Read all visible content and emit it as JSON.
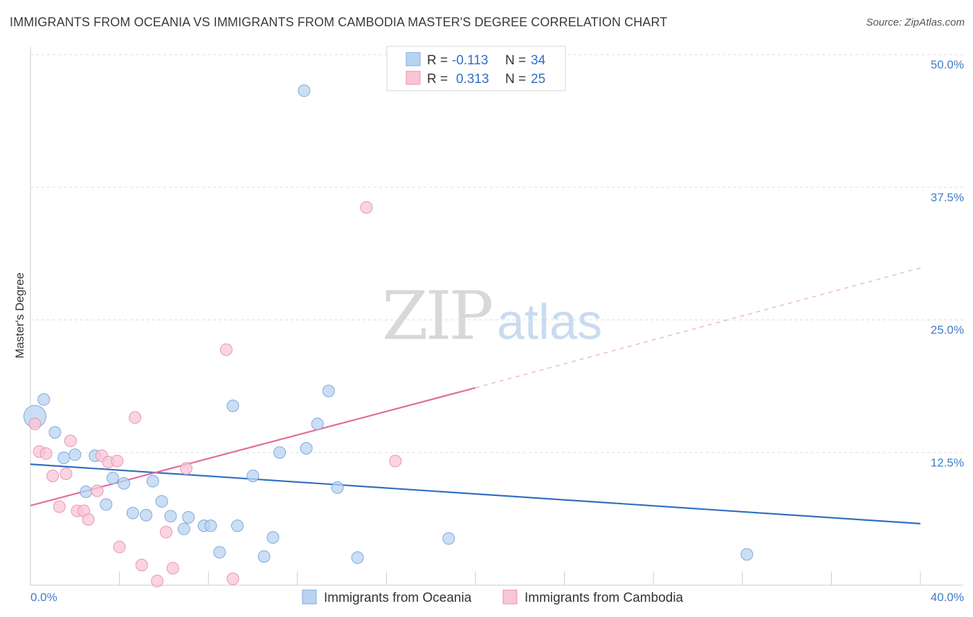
{
  "title": "IMMIGRANTS FROM OCEANIA VS IMMIGRANTS FROM CAMBODIA MASTER'S DEGREE CORRELATION CHART",
  "source": "Source: ZipAtlas.com",
  "watermark": {
    "zip": "ZIP",
    "atlas": "atlas"
  },
  "colors": {
    "oceania_fill": "#b8d3f2",
    "oceania_stroke": "#7fa9dc",
    "oceania_line": "#2f6fc4",
    "cambodia_fill": "#f8c6d6",
    "cambodia_stroke": "#ea93b0",
    "cambodia_line": "#e06e96",
    "grid": "#dddddd",
    "axis": "#cccccc"
  },
  "legend": {
    "r_label": "R =",
    "n_label": "N =",
    "oceania": {
      "r": "-0.113",
      "n": "34"
    },
    "cambodia": {
      "r": "0.313",
      "n": "25"
    }
  },
  "chart_data": {
    "type": "scatter",
    "title": "IMMIGRANTS FROM OCEANIA VS IMMIGRANTS FROM CAMBODIA MASTER'S DEGREE CORRELATION CHART",
    "xlabel": "",
    "ylabel": "Master's Degree",
    "xlim": [
      0,
      40
    ],
    "ylim": [
      0,
      50
    ],
    "x_tick_labels": [
      "0.0%",
      "40.0%"
    ],
    "y_ticks": [
      12.5,
      25.0,
      37.5,
      50.0
    ],
    "y_tick_labels": [
      "12.5%",
      "25.0%",
      "37.5%",
      "50.0%"
    ],
    "series": [
      {
        "name": "Immigrants from Oceania",
        "points": [
          {
            "x": 0.2,
            "y": 15.9,
            "big": true
          },
          {
            "x": 0.6,
            "y": 17.5
          },
          {
            "x": 1.1,
            "y": 14.4
          },
          {
            "x": 1.5,
            "y": 12.0
          },
          {
            "x": 2.0,
            "y": 12.3
          },
          {
            "x": 2.5,
            "y": 8.8
          },
          {
            "x": 2.9,
            "y": 12.2
          },
          {
            "x": 3.4,
            "y": 7.6
          },
          {
            "x": 3.7,
            "y": 10.1
          },
          {
            "x": 4.2,
            "y": 9.6
          },
          {
            "x": 4.6,
            "y": 6.8
          },
          {
            "x": 5.2,
            "y": 6.6
          },
          {
            "x": 5.5,
            "y": 9.8
          },
          {
            "x": 5.9,
            "y": 7.9
          },
          {
            "x": 6.3,
            "y": 6.5
          },
          {
            "x": 6.9,
            "y": 5.3
          },
          {
            "x": 7.1,
            "y": 6.4
          },
          {
            "x": 7.8,
            "y": 5.6
          },
          {
            "x": 8.1,
            "y": 5.6
          },
          {
            "x": 8.5,
            "y": 3.1
          },
          {
            "x": 9.1,
            "y": 16.9
          },
          {
            "x": 9.3,
            "y": 5.6
          },
          {
            "x": 10.0,
            "y": 10.3
          },
          {
            "x": 10.5,
            "y": 2.7
          },
          {
            "x": 10.9,
            "y": 4.5
          },
          {
            "x": 11.2,
            "y": 12.5
          },
          {
            "x": 12.3,
            "y": 46.6
          },
          {
            "x": 12.4,
            "y": 12.9
          },
          {
            "x": 12.9,
            "y": 15.2
          },
          {
            "x": 13.4,
            "y": 18.3
          },
          {
            "x": 13.8,
            "y": 9.2
          },
          {
            "x": 14.7,
            "y": 2.6
          },
          {
            "x": 18.8,
            "y": 4.4
          },
          {
            "x": 32.2,
            "y": 2.9
          }
        ]
      },
      {
        "name": "Immigrants from Cambodia",
        "points": [
          {
            "x": 0.2,
            "y": 15.2
          },
          {
            "x": 0.4,
            "y": 12.6
          },
          {
            "x": 0.7,
            "y": 12.4
          },
          {
            "x": 1.0,
            "y": 10.3
          },
          {
            "x": 1.3,
            "y": 7.4
          },
          {
            "x": 1.6,
            "y": 10.5
          },
          {
            "x": 1.8,
            "y": 13.6
          },
          {
            "x": 2.1,
            "y": 7.0
          },
          {
            "x": 2.4,
            "y": 7.0
          },
          {
            "x": 2.6,
            "y": 6.2
          },
          {
            "x": 3.0,
            "y": 8.9
          },
          {
            "x": 3.2,
            "y": 12.2
          },
          {
            "x": 3.5,
            "y": 11.6
          },
          {
            "x": 3.9,
            "y": 11.7
          },
          {
            "x": 4.0,
            "y": 3.6
          },
          {
            "x": 4.7,
            "y": 15.8
          },
          {
            "x": 5.0,
            "y": 1.9
          },
          {
            "x": 5.7,
            "y": 0.4
          },
          {
            "x": 6.1,
            "y": 5.0
          },
          {
            "x": 6.4,
            "y": 1.6
          },
          {
            "x": 7.0,
            "y": 11.0
          },
          {
            "x": 8.8,
            "y": 22.2
          },
          {
            "x": 9.1,
            "y": 0.6
          },
          {
            "x": 15.1,
            "y": 35.6
          },
          {
            "x": 16.4,
            "y": 11.7
          }
        ]
      }
    ],
    "trendlines": [
      {
        "series": "Immigrants from Oceania",
        "x0": 0,
        "y0": 11.4,
        "x1": 40,
        "y1": 5.8
      },
      {
        "series": "Immigrants from Cambodia",
        "x0": 0,
        "y0": 7.5,
        "x1": 20,
        "y1": 18.6,
        "dashed_to_x": 40,
        "dashed_to_y": 29.9
      }
    ]
  }
}
